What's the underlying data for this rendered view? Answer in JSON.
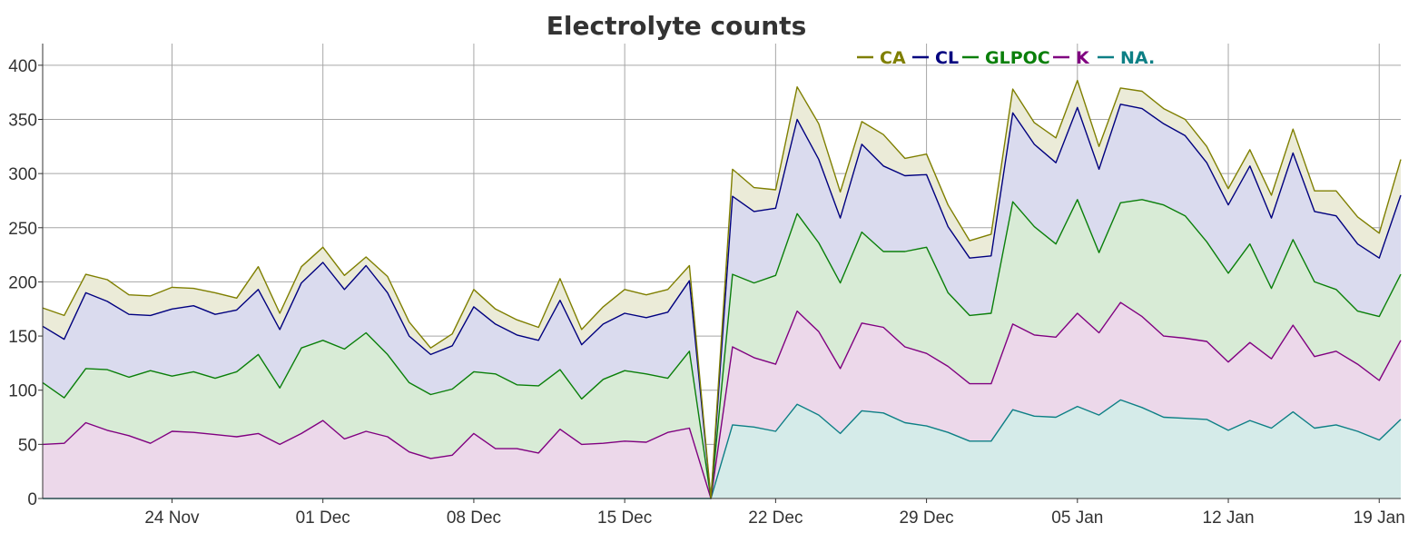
{
  "chart_data": {
    "type": "area",
    "stacked": true,
    "title": "Electrolyte counts",
    "xlabel": "",
    "ylabel": "",
    "ylim": [
      0,
      420
    ],
    "yticks": [
      0,
      50,
      100,
      150,
      200,
      250,
      300,
      350,
      400
    ],
    "x_start": "2023-11-18",
    "x_end": "2024-01-20",
    "xticks": [
      {
        "date": "2023-11-24",
        "label": "24 Nov"
      },
      {
        "date": "2023-12-01",
        "label": "01 Dec"
      },
      {
        "date": "2023-12-08",
        "label": "08 Dec"
      },
      {
        "date": "2023-12-15",
        "label": "15 Dec"
      },
      {
        "date": "2023-12-22",
        "label": "22 Dec"
      },
      {
        "date": "2023-12-29",
        "label": "29 Dec"
      },
      {
        "date": "2024-01-05",
        "label": "05 Jan"
      },
      {
        "date": "2024-01-12",
        "label": "12 Jan"
      },
      {
        "date": "2024-01-19",
        "label": "19 Jan"
      }
    ],
    "grid": true,
    "legend_position": "top-right",
    "x": [
      "2023-11-18",
      "2023-11-19",
      "2023-11-20",
      "2023-11-21",
      "2023-11-22",
      "2023-11-23",
      "2023-11-24",
      "2023-11-25",
      "2023-11-26",
      "2023-11-27",
      "2023-11-28",
      "2023-11-29",
      "2023-11-30",
      "2023-12-01",
      "2023-12-02",
      "2023-12-03",
      "2023-12-04",
      "2023-12-05",
      "2023-12-06",
      "2023-12-07",
      "2023-12-08",
      "2023-12-09",
      "2023-12-10",
      "2023-12-11",
      "2023-12-12",
      "2023-12-13",
      "2023-12-14",
      "2023-12-15",
      "2023-12-16",
      "2023-12-17",
      "2023-12-18",
      "2023-12-19",
      "2023-12-20",
      "2023-12-21",
      "2023-12-22",
      "2023-12-23",
      "2023-12-24",
      "2023-12-25",
      "2023-12-26",
      "2023-12-27",
      "2023-12-28",
      "2023-12-29",
      "2023-12-30",
      "2023-12-31",
      "2024-01-01",
      "2024-01-02",
      "2024-01-03",
      "2024-01-04",
      "2024-01-05",
      "2024-01-06",
      "2024-01-07",
      "2024-01-08",
      "2024-01-09",
      "2024-01-10",
      "2024-01-11",
      "2024-01-12",
      "2024-01-13",
      "2024-01-14",
      "2024-01-15",
      "2024-01-16",
      "2024-01-17",
      "2024-01-18",
      "2024-01-19",
      "2024-01-20"
    ],
    "series": [
      {
        "name": "NA.",
        "color": "#0d7f85",
        "fill": "#d5ebe9",
        "values": [
          0,
          0,
          0,
          0,
          0,
          0,
          0,
          0,
          0,
          0,
          0,
          0,
          0,
          0,
          0,
          0,
          0,
          0,
          0,
          0,
          0,
          0,
          0,
          0,
          0,
          0,
          0,
          0,
          0,
          0,
          0,
          0,
          68,
          66,
          62,
          87,
          77,
          60,
          81,
          79,
          70,
          67,
          61,
          53,
          53,
          82,
          76,
          75,
          85,
          77,
          91,
          84,
          75,
          74,
          73,
          63,
          72,
          65,
          80,
          65,
          68,
          62,
          54,
          73
        ]
      },
      {
        "name": "K",
        "color": "#800080",
        "fill": "#ecd8ea",
        "values": [
          50,
          51,
          70,
          63,
          58,
          51,
          62,
          61,
          59,
          57,
          60,
          50,
          60,
          72,
          55,
          62,
          57,
          43,
          37,
          40,
          60,
          46,
          46,
          42,
          64,
          50,
          51,
          53,
          52,
          61,
          65,
          0,
          72,
          64,
          62,
          86,
          77,
          60,
          81,
          79,
          70,
          67,
          61,
          53,
          53,
          79,
          75,
          74,
          86,
          76,
          90,
          84,
          75,
          74,
          72,
          63,
          72,
          64,
          80,
          66,
          68,
          62,
          55,
          73
        ]
      },
      {
        "name": "GLPOC",
        "color": "#0a7f0a",
        "fill": "#d8ebd6",
        "values": [
          57,
          42,
          50,
          56,
          54,
          67,
          51,
          56,
          52,
          60,
          73,
          52,
          79,
          74,
          83,
          91,
          76,
          64,
          59,
          61,
          57,
          69,
          59,
          62,
          55,
          42,
          59,
          65,
          63,
          50,
          71,
          0,
          67,
          69,
          82,
          90,
          82,
          79,
          84,
          70,
          88,
          98,
          68,
          63,
          65,
          113,
          100,
          86,
          105,
          74,
          92,
          108,
          121,
          113,
          92,
          82,
          91,
          65,
          79,
          69,
          57,
          49,
          59,
          61
        ]
      },
      {
        "name": "CL",
        "color": "#00007f",
        "fill": "#dadbee",
        "values": [
          52,
          54,
          70,
          63,
          58,
          51,
          62,
          61,
          59,
          57,
          60,
          54,
          60,
          72,
          55,
          62,
          57,
          43,
          37,
          40,
          60,
          46,
          46,
          42,
          64,
          50,
          51,
          53,
          52,
          61,
          65,
          0,
          72,
          66,
          62,
          87,
          77,
          60,
          81,
          79,
          70,
          67,
          61,
          53,
          53,
          82,
          76,
          75,
          85,
          77,
          91,
          84,
          75,
          74,
          73,
          63,
          72,
          65,
          80,
          65,
          68,
          62,
          54,
          73
        ]
      },
      {
        "name": "CA",
        "color": "#7f7f00",
        "fill": "#ebebd8",
        "values": [
          17,
          22,
          17,
          20,
          18,
          18,
          20,
          16,
          20,
          11,
          21,
          15,
          15,
          14,
          13,
          8,
          15,
          13,
          6,
          11,
          16,
          14,
          14,
          12,
          20,
          14,
          16,
          22,
          21,
          21,
          14,
          0,
          25,
          22,
          17,
          30,
          33,
          24,
          21,
          29,
          16,
          19,
          20,
          16,
          20,
          22,
          20,
          23,
          25,
          21,
          15,
          16,
          14,
          15,
          15,
          15,
          15,
          21,
          22,
          19,
          23,
          25,
          23,
          33
        ]
      }
    ]
  }
}
